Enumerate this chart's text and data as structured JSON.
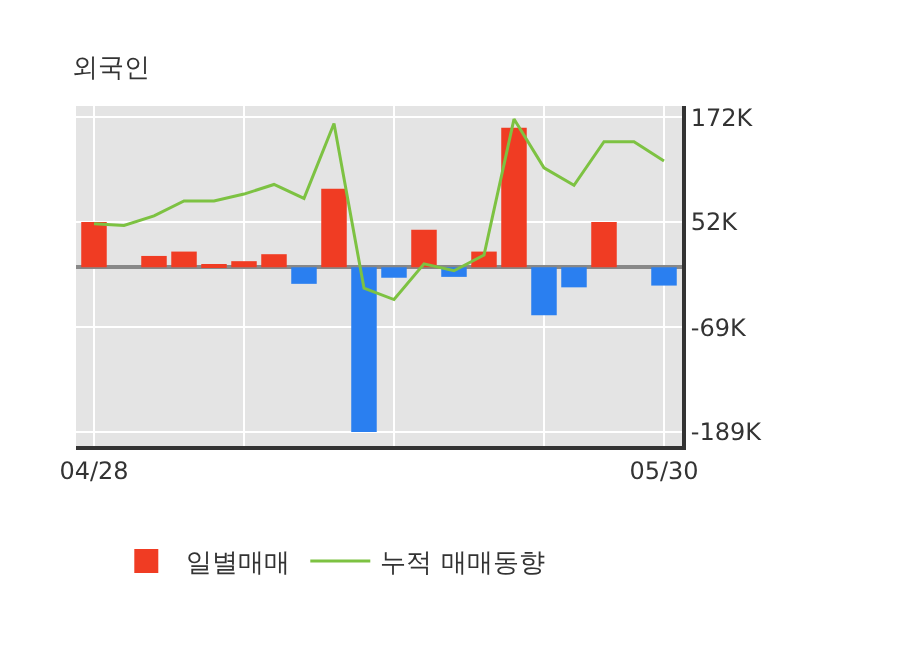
{
  "chart_data": {
    "type": "bar",
    "title": "외국인",
    "categories": [
      "04/28",
      null,
      null,
      null,
      null,
      null,
      null,
      null,
      null,
      null,
      null,
      null,
      null,
      null,
      null,
      null,
      null,
      null,
      null,
      "05/30"
    ],
    "series": [
      {
        "name": "일별매매",
        "colors": [
          "#f03c23",
          "#f03c23",
          "#f03c23",
          "#f03c23",
          "#f03c23",
          "#f03c23",
          "#f03c23",
          "#2a7ff0",
          "#f03c23",
          "#2a7ff0",
          "#2a7ff0",
          "#f03c23",
          "#2a7ff0",
          "#f03c23",
          "#f03c23",
          "#2a7ff0",
          "#2a7ff0",
          "#f03c23",
          "#f03c23",
          "#2a7ff0"
        ],
        "values": [
          52,
          null,
          13,
          18,
          2,
          7,
          15,
          -19,
          90,
          -189,
          -12,
          43,
          -11,
          18,
          160,
          -55,
          -23,
          52,
          null,
          -21
        ]
      },
      {
        "name": "누적 매매동향",
        "type": "line",
        "color": "#7dc242",
        "values": [
          50,
          48,
          59,
          76,
          76,
          84,
          95,
          79,
          165,
          -24,
          -37,
          4,
          -4,
          14,
          170,
          114,
          94,
          144,
          144,
          122
        ]
      }
    ],
    "ylim": [
      -205,
      185
    ],
    "yticks": [
      {
        "value": 172,
        "label": "172K"
      },
      {
        "value": 52,
        "label": "52K"
      },
      {
        "value": -69,
        "label": "-69K"
      },
      {
        "value": -189,
        "label": "-189K"
      }
    ],
    "grid": true,
    "legend": "bottom"
  }
}
